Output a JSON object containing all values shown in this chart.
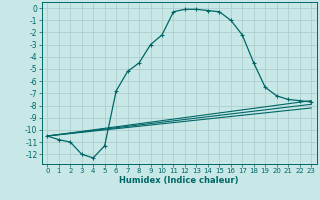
{
  "xlabel": "Humidex (Indice chaleur)",
  "xlim": [
    -0.5,
    23.5
  ],
  "ylim": [
    -12.8,
    0.5
  ],
  "background_color": "#c8e8e8",
  "grid_color": "#aecece",
  "line_color": "#006666",
  "main_curve_x": [
    0,
    1,
    2,
    3,
    4,
    5,
    6,
    7,
    8,
    9,
    10,
    11,
    12,
    13,
    14,
    15,
    16,
    17,
    18,
    19,
    20,
    21,
    22,
    23
  ],
  "main_curve_y": [
    -10.5,
    -10.8,
    -11.0,
    -12.0,
    -12.3,
    -11.3,
    -6.8,
    -5.2,
    -4.5,
    -3.0,
    -2.2,
    -0.3,
    -0.1,
    -0.1,
    -0.2,
    -0.3,
    -1.0,
    -2.2,
    -4.5,
    -6.5,
    -7.2,
    -7.5,
    -7.6,
    -7.7
  ],
  "line2_x": [
    0,
    23
  ],
  "line2_y": [
    -10.5,
    -7.6
  ],
  "line3_x": [
    0,
    23
  ],
  "line3_y": [
    -10.5,
    -7.9
  ],
  "line4_x": [
    0,
    23
  ],
  "line4_y": [
    -10.5,
    -8.2
  ],
  "xticks": [
    0,
    1,
    2,
    3,
    4,
    5,
    6,
    7,
    8,
    9,
    10,
    11,
    12,
    13,
    14,
    15,
    16,
    17,
    18,
    19,
    20,
    21,
    22,
    23
  ],
  "yticks": [
    0,
    -1,
    -2,
    -3,
    -4,
    -5,
    -6,
    -7,
    -8,
    -9,
    -10,
    -11,
    -12
  ]
}
